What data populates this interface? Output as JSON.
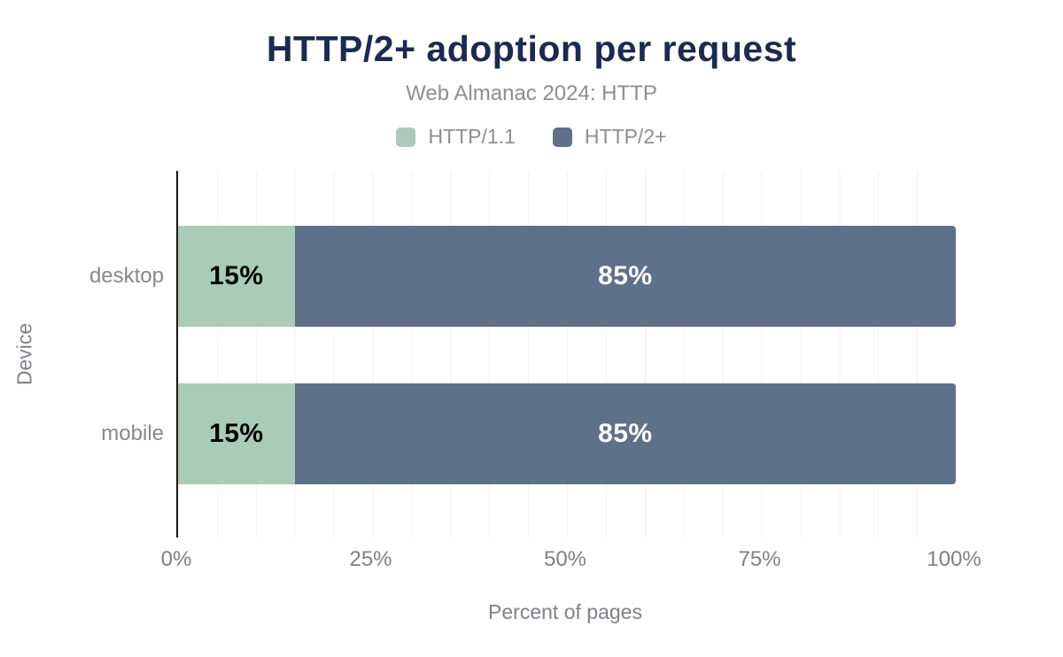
{
  "chart_data": {
    "type": "bar",
    "orientation": "horizontal",
    "stacked": true,
    "title": "HTTP/2+ adoption per request",
    "subtitle": "Web Almanac 2024: HTTP",
    "categories": [
      "desktop",
      "mobile"
    ],
    "series": [
      {
        "name": "HTTP/1.1",
        "color": "#a9cbb8",
        "values": [
          15,
          15
        ],
        "labels": [
          "15%",
          "15%"
        ],
        "label_color": "#000000"
      },
      {
        "name": "HTTP/2+",
        "color": "#5f7189",
        "values": [
          85,
          85
        ],
        "labels": [
          "85%",
          "85%"
        ],
        "label_color": "#ffffff"
      }
    ],
    "xlabel": "Percent of pages",
    "ylabel": "Device",
    "xlim": [
      0,
      100
    ],
    "x_ticks": [
      {
        "value": 0,
        "label": "0%"
      },
      {
        "value": 25,
        "label": "25%"
      },
      {
        "value": 50,
        "label": "50%"
      },
      {
        "value": 75,
        "label": "75%"
      },
      {
        "value": 100,
        "label": "100%"
      }
    ],
    "grid": {
      "vertical_minor_step_percent": 5,
      "color": "#f1f1f1"
    },
    "legend_position": "top",
    "title_color": "#1b2a4e",
    "subtitle_color": "#8b8e94",
    "axis_line_color": "#1a1a1a"
  }
}
